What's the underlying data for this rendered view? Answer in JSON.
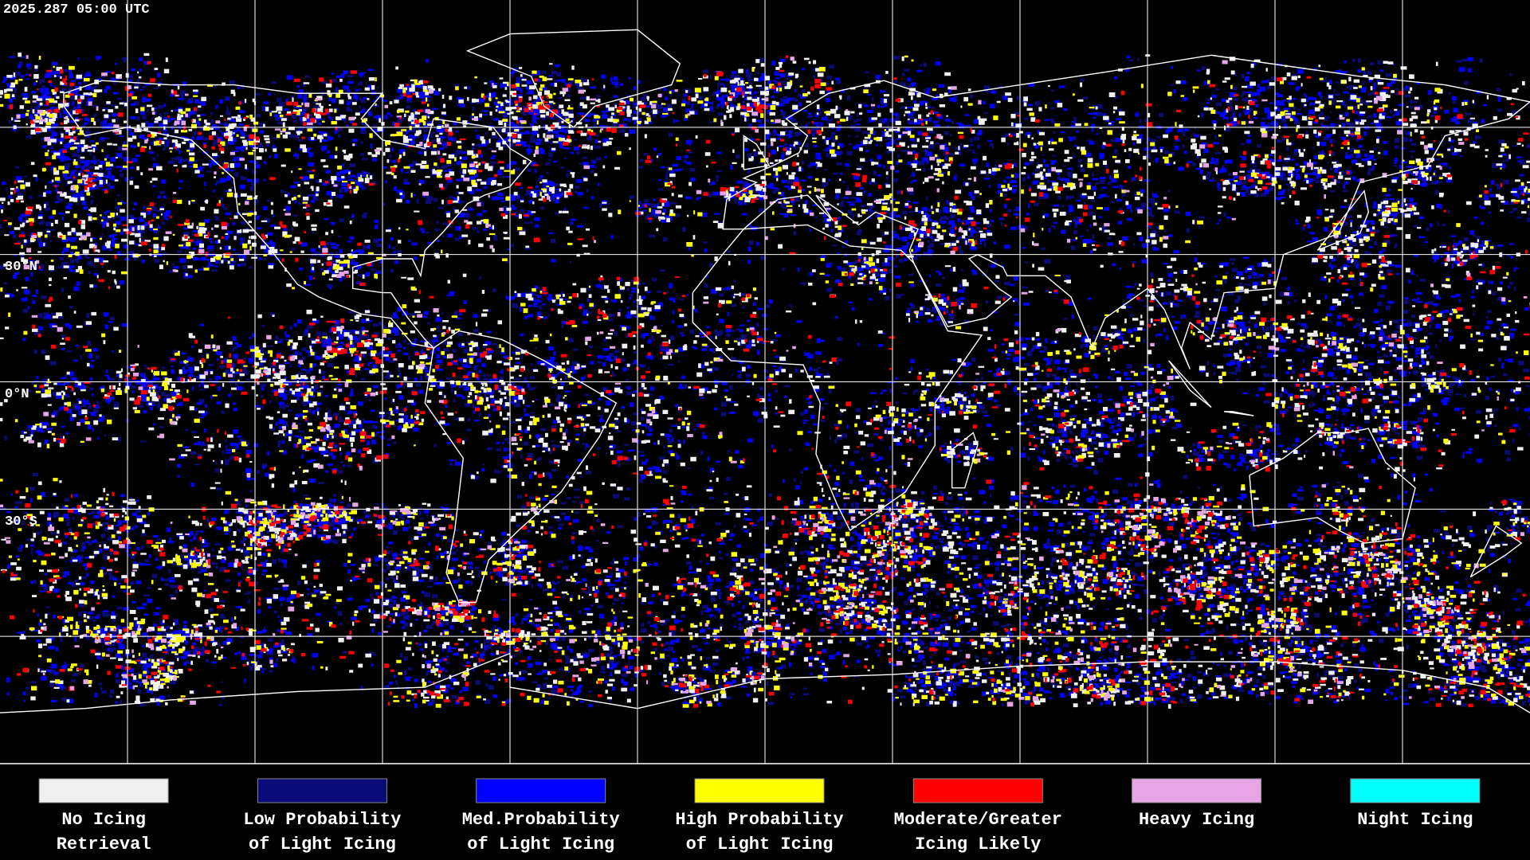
{
  "header": {
    "timestamp": "2025.287 05:00 UTC"
  },
  "map": {
    "latitude_labels": [
      "30°N",
      "0°N",
      "30°S"
    ]
  },
  "legend": [
    {
      "label_lines": [
        "No Icing",
        "Retrieval"
      ],
      "color": "#f0f0f0"
    },
    {
      "label_lines": [
        "Low Probability",
        "of Light Icing"
      ],
      "color": "#0a0a78"
    },
    {
      "label_lines": [
        "Med.Probability",
        "of Light Icing"
      ],
      "color": "#0000ff"
    },
    {
      "label_lines": [
        "High Probability",
        "of Light Icing"
      ],
      "color": "#ffff00"
    },
    {
      "label_lines": [
        "Moderate/Greater",
        "Icing Likely"
      ],
      "color": "#ff0000"
    },
    {
      "label_lines": [
        "Heavy Icing"
      ],
      "color": "#e6a6e6"
    },
    {
      "label_lines": [
        "Night Icing"
      ],
      "color": "#00ffff"
    }
  ]
}
